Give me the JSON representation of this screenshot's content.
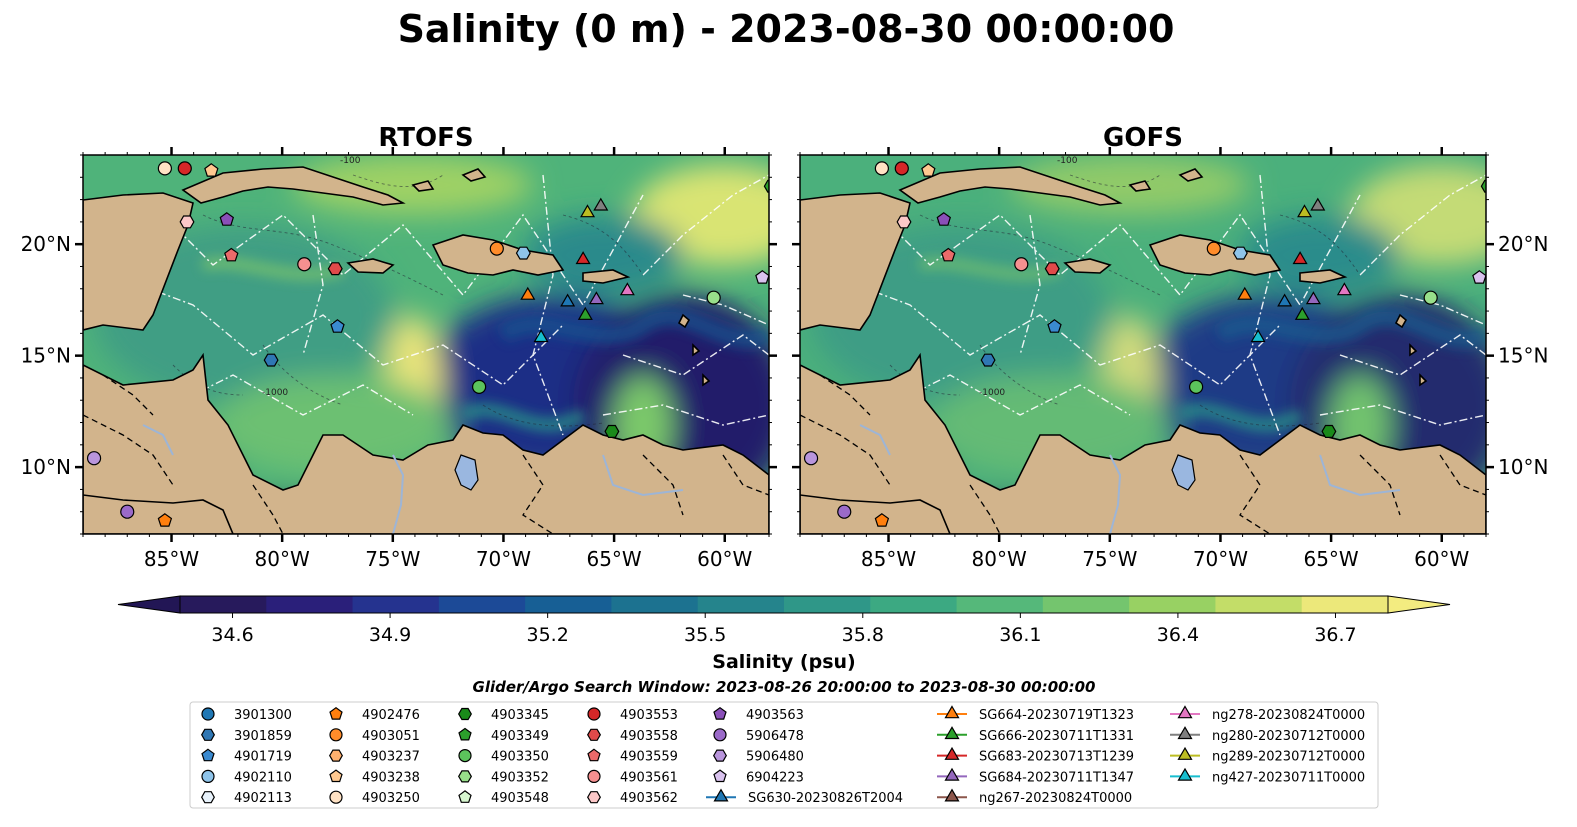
{
  "title": "Salinity (0 m) - 2023-08-30 00:00:00",
  "panels": [
    {
      "title": "RTOFS"
    },
    {
      "title": "GOFS"
    }
  ],
  "axes": {
    "lon_ticks": [
      "85°W",
      "80°W",
      "75°W",
      "70°W",
      "65°W",
      "60°W"
    ],
    "lat_ticks": [
      "20°N",
      "15°N",
      "10°N"
    ],
    "lon_range": [
      -89,
      -58
    ],
    "lat_range": [
      7,
      24
    ]
  },
  "colorbar": {
    "label": "Salinity (psu)",
    "ticks": [
      "34.6",
      "34.9",
      "35.2",
      "35.5",
      "35.8",
      "36.1",
      "36.4",
      "36.7"
    ],
    "range": [
      34.5,
      36.8
    ],
    "colors": [
      "#271a5c",
      "#2a1f7a",
      "#25338f",
      "#1c4a97",
      "#175f95",
      "#1c7290",
      "#25848c",
      "#2f9788",
      "#3ca982",
      "#55b87a",
      "#74c56e",
      "#98d163",
      "#c3dd68",
      "#ece87a"
    ],
    "extend": "both"
  },
  "search_window": "Glider/Argo Search Window: 2023-08-26 20:00:00 to 2023-08-30 00:00:00",
  "contour_labels": [
    "-100",
    "-1000"
  ],
  "legend": {
    "columns": [
      [
        {
          "label": "3901300",
          "marker": "circle",
          "color": "#1f77b4"
        },
        {
          "label": "3901859",
          "marker": "hexagon",
          "color": "#2f77b4"
        },
        {
          "label": "4901719",
          "marker": "pentagon",
          "color": "#3a8ad0"
        },
        {
          "label": "4902110",
          "marker": "circle",
          "color": "#8fc4ea"
        },
        {
          "label": "4902113",
          "marker": "hexagon",
          "color": "#e8f2fb"
        }
      ],
      [
        {
          "label": "4902476",
          "marker": "pentagon",
          "color": "#ff7f0e"
        },
        {
          "label": "4903051",
          "marker": "circle",
          "color": "#ff8c2a"
        },
        {
          "label": "4903237",
          "marker": "hexagon",
          "color": "#ffb06e"
        },
        {
          "label": "4903238",
          "marker": "pentagon",
          "color": "#ffc890"
        },
        {
          "label": "4903250",
          "marker": "circle",
          "color": "#ffe2c4"
        }
      ],
      [
        {
          "label": "4903345",
          "marker": "hexagon",
          "color": "#1a8a1a"
        },
        {
          "label": "4903349",
          "marker": "pentagon",
          "color": "#2ca02c"
        },
        {
          "label": "4903350",
          "marker": "circle",
          "color": "#5cc45c"
        },
        {
          "label": "4903352",
          "marker": "hexagon",
          "color": "#98df8a"
        },
        {
          "label": "4903548",
          "marker": "pentagon",
          "color": "#d8f7d0"
        }
      ],
      [
        {
          "label": "4903553",
          "marker": "circle",
          "color": "#d62728"
        },
        {
          "label": "4903558",
          "marker": "hexagon",
          "color": "#e04a4a"
        },
        {
          "label": "4903559",
          "marker": "pentagon",
          "color": "#eb6a6a"
        },
        {
          "label": "4903561",
          "marker": "circle",
          "color": "#f59090"
        },
        {
          "label": "4903562",
          "marker": "hexagon",
          "color": "#fcc8c8"
        }
      ],
      [
        {
          "label": "4903563",
          "marker": "pentagon",
          "color": "#8a4fb8"
        },
        {
          "label": "5906478",
          "marker": "circle",
          "color": "#9b6ac9"
        },
        {
          "label": "5906480",
          "marker": "hexagon",
          "color": "#b995dc"
        },
        {
          "label": "6904223",
          "marker": "pentagon",
          "color": "#d9c2ee"
        },
        {
          "label": "SG630-20230826T2004",
          "marker": "triangle-line",
          "color": "#1f77b4"
        }
      ],
      [
        {
          "label": "SG664-20230719T1323",
          "marker": "triangle-line",
          "color": "#ff7f0e"
        },
        {
          "label": "SG666-20230711T1331",
          "marker": "triangle-line",
          "color": "#2ca02c"
        },
        {
          "label": "SG683-20230713T1239",
          "marker": "triangle-line",
          "color": "#d62728"
        },
        {
          "label": "SG684-20230711T1347",
          "marker": "triangle-line",
          "color": "#9467bd"
        },
        {
          "label": "ng267-20230824T0000",
          "marker": "triangle-line",
          "color": "#8c564b"
        }
      ],
      [
        {
          "label": "ng278-20230824T0000",
          "marker": "triangle-line",
          "color": "#e377c2"
        },
        {
          "label": "ng280-20230712T0000",
          "marker": "triangle-line",
          "color": "#7f7f7f"
        },
        {
          "label": "ng289-20230712T0000",
          "marker": "triangle-line",
          "color": "#bcbd22"
        },
        {
          "label": "ng427-20230711T0000",
          "marker": "triangle-line",
          "color": "#17becf"
        }
      ]
    ]
  },
  "observations": [
    {
      "lon": -85.3,
      "lat": 23.4,
      "marker": "circle",
      "color": "#ffe2c4"
    },
    {
      "lon": -84.4,
      "lat": 23.4,
      "marker": "circle",
      "color": "#d62728"
    },
    {
      "lon": -83.2,
      "lat": 23.3,
      "marker": "pentagon",
      "color": "#ffc890"
    },
    {
      "lon": -84.3,
      "lat": 21.0,
      "marker": "hexagon",
      "color": "#fcc8c8"
    },
    {
      "lon": -82.5,
      "lat": 21.1,
      "marker": "pentagon",
      "color": "#8a4fb8"
    },
    {
      "lon": -82.3,
      "lat": 19.5,
      "marker": "pentagon",
      "color": "#eb6a6a"
    },
    {
      "lon": -79.0,
      "lat": 19.1,
      "marker": "circle",
      "color": "#f59090"
    },
    {
      "lon": -77.6,
      "lat": 18.9,
      "marker": "hexagon",
      "color": "#e04a4a"
    },
    {
      "lon": -77.5,
      "lat": 16.3,
      "marker": "pentagon",
      "color": "#3a8ad0"
    },
    {
      "lon": -80.5,
      "lat": 14.8,
      "marker": "hexagon",
      "color": "#2f77b4"
    },
    {
      "lon": -70.3,
      "lat": 19.8,
      "marker": "circle",
      "color": "#ff8c2a"
    },
    {
      "lon": -69.1,
      "lat": 19.6,
      "marker": "hexagon",
      "color": "#8fc4ea"
    },
    {
      "lon": -71.1,
      "lat": 13.6,
      "marker": "circle",
      "color": "#5cc45c"
    },
    {
      "lon": -65.1,
      "lat": 11.6,
      "marker": "hexagon",
      "color": "#1a8a1a"
    },
    {
      "lon": -60.5,
      "lat": 17.6,
      "marker": "circle",
      "color": "#98df8a"
    },
    {
      "lon": -58.3,
      "lat": 18.5,
      "marker": "pentagon",
      "color": "#d9c2ee"
    },
    {
      "lon": -57.9,
      "lat": 22.6,
      "marker": "hexagon",
      "color": "#2ca02c"
    },
    {
      "lon": -88.5,
      "lat": 10.4,
      "marker": "circle",
      "color": "#b995dc"
    },
    {
      "lon": -87.0,
      "lat": 8.0,
      "marker": "circle",
      "color": "#9b6ac9"
    },
    {
      "lon": -85.3,
      "lat": 7.6,
      "marker": "pentagon",
      "color": "#ff7f0e"
    },
    {
      "lon": -66.2,
      "lat": 21.4,
      "marker": "triangle",
      "color": "#bcbd22"
    },
    {
      "lon": -65.6,
      "lat": 21.7,
      "marker": "triangle",
      "color": "#7f7f7f"
    },
    {
      "lon": -66.4,
      "lat": 19.3,
      "marker": "triangle",
      "color": "#d62728"
    },
    {
      "lon": -68.9,
      "lat": 17.7,
      "marker": "triangle",
      "color": "#ff7f0e"
    },
    {
      "lon": -67.1,
      "lat": 17.4,
      "marker": "triangle",
      "color": "#1f77b4"
    },
    {
      "lon": -66.3,
      "lat": 16.8,
      "marker": "triangle",
      "color": "#2ca02c"
    },
    {
      "lon": -65.8,
      "lat": 17.5,
      "marker": "triangle",
      "color": "#9467bd"
    },
    {
      "lon": -64.4,
      "lat": 17.9,
      "marker": "triangle",
      "color": "#e377c2"
    },
    {
      "lon": -68.3,
      "lat": 15.8,
      "marker": "triangle",
      "color": "#17becf"
    }
  ]
}
